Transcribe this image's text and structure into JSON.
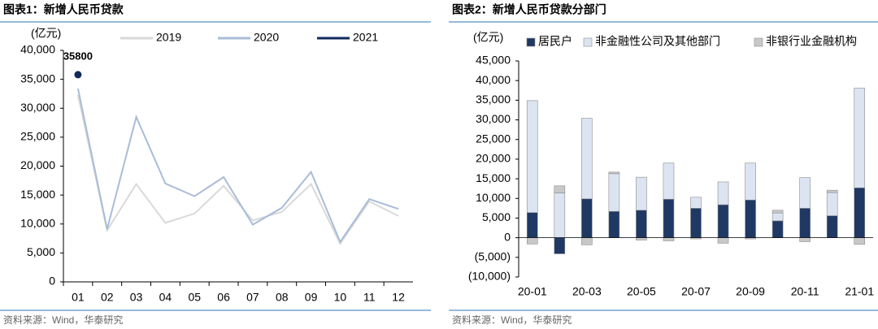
{
  "chart_data": [
    {
      "type": "line",
      "title": "图表1：新增人民币贷款",
      "unit": "(亿元)",
      "source": "资料来源：Wind，华泰研究",
      "categories": [
        "01",
        "02",
        "03",
        "04",
        "05",
        "06",
        "07",
        "08",
        "09",
        "10",
        "11",
        "12"
      ],
      "series": [
        {
          "name": "2019",
          "color": "#d9d9d9",
          "values": [
            32300,
            8900,
            16900,
            10200,
            11800,
            16600,
            10600,
            12100,
            16900,
            6600,
            13900,
            11400
          ]
        },
        {
          "name": "2020",
          "color": "#a9bcd8",
          "values": [
            33400,
            9100,
            28500,
            17000,
            14800,
            18100,
            9900,
            12800,
            19000,
            6900,
            14300,
            12600
          ]
        },
        {
          "name": "2021",
          "color": "#0f2a5c",
          "show_labels": true,
          "values": [
            35800,
            null,
            null,
            null,
            null,
            null,
            null,
            null,
            null,
            null,
            null,
            null
          ]
        }
      ],
      "ylim": [
        0,
        40000
      ],
      "yticks": [
        0,
        {
          "value": 5000,
          "label": "5,000"
        },
        {
          "value": 10000,
          "label": "10,000"
        },
        {
          "value": 15000,
          "label": "15,000"
        },
        {
          "value": 20000,
          "label": "20,000"
        },
        {
          "value": 25000,
          "label": "25,000"
        },
        {
          "value": 30000,
          "label": "30,000"
        },
        {
          "value": 35000,
          "label": "35,000"
        },
        {
          "value": 40000,
          "label": "40,000"
        }
      ]
    },
    {
      "type": "stacked_bar",
      "title": "图表2：新增人民币贷款分部门",
      "unit": "(亿元)",
      "source": "资料来源：Wind，华泰研究",
      "categories": [
        "20-01",
        null,
        "20-03",
        null,
        "20-05",
        null,
        "20-07",
        null,
        "20-09",
        null,
        "20-11",
        null,
        "21-01"
      ],
      "series": [
        {
          "name": "居民户",
          "color": "#1f3864",
          "values": [
            6400,
            -4100,
            9900,
            6700,
            7000,
            9800,
            7500,
            8400,
            9600,
            4300,
            7500,
            5600,
            12700
          ]
        },
        {
          "name": "非金融性公司及其他部门",
          "color": "#dce4f2",
          "values": [
            28500,
            11400,
            20500,
            9600,
            8400,
            9200,
            2800,
            5800,
            9400,
            2000,
            7800,
            5900,
            25400
          ]
        },
        {
          "name": "非银行业金融机构",
          "color": "#c8c8c8",
          "values": [
            -1600,
            1800,
            -1800,
            400,
            -600,
            -800,
            -300,
            -1400,
            -300,
            700,
            -1000,
            600,
            -1700
          ]
        }
      ],
      "ylim": [
        -10000,
        45000
      ],
      "yticks": [
        {
          "value": -10000,
          "label": "(10,000)"
        },
        {
          "value": -5000,
          "label": "(5,000)"
        },
        0,
        {
          "value": 5000,
          "label": "5,000"
        },
        {
          "value": 10000,
          "label": "10,000"
        },
        {
          "value": 15000,
          "label": "15,000"
        },
        {
          "value": 20000,
          "label": "20,000"
        },
        {
          "value": 25000,
          "label": "25,000"
        },
        {
          "value": 30000,
          "label": "30,000"
        },
        {
          "value": 35000,
          "label": "35,000"
        },
        {
          "value": 40000,
          "label": "40,000"
        },
        {
          "value": 45000,
          "label": "45,000"
        }
      ]
    }
  ]
}
